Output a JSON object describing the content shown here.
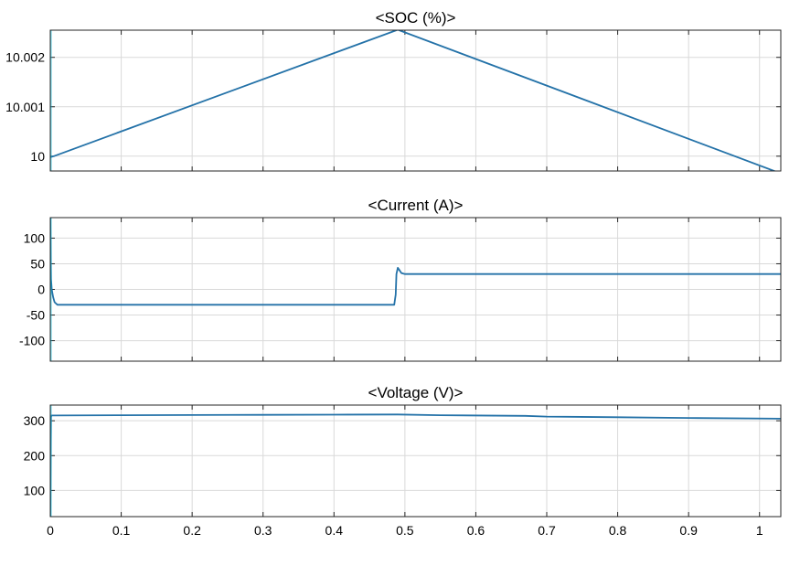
{
  "chart_data": [
    {
      "type": "line",
      "title": "<SOC (%)>",
      "xlim": [
        0,
        1.03
      ],
      "ylim": [
        9.9997,
        10.00255
      ],
      "grid": true,
      "yticks": [
        10,
        10.001,
        10.002
      ],
      "yticklabels": [
        "10",
        "10.001",
        "10.002"
      ],
      "xticks": [
        0,
        0.1,
        0.2,
        0.3,
        0.4,
        0.5,
        0.6,
        0.7,
        0.8,
        0.9,
        1
      ],
      "xticklabels": [],
      "series": [
        {
          "x": [
            0,
            0.005,
            0.49,
            1.03
          ],
          "y": [
            9.99998,
            10.0,
            10.00256,
            9.99965
          ]
        }
      ]
    },
    {
      "type": "line",
      "title": "<Current (A)>",
      "xlim": [
        0,
        1.03
      ],
      "ylim": [
        -140,
        140
      ],
      "grid": true,
      "yticks": [
        -100,
        -50,
        0,
        50,
        100
      ],
      "yticklabels": [
        "-100",
        "-50",
        "0",
        "50",
        "100"
      ],
      "xticks": [
        0,
        0.1,
        0.2,
        0.3,
        0.4,
        0.5,
        0.6,
        0.7,
        0.8,
        0.9,
        1
      ],
      "xticklabels": [],
      "series": [
        {
          "x": [
            0,
            0.001,
            0.002,
            0.004,
            0.006,
            0.01,
            0.015,
            0.02,
            0.1,
            0.2,
            0.3,
            0.4,
            0.485,
            0.487,
            0.488,
            0.49,
            0.492,
            0.495,
            0.5,
            0.51,
            0.6,
            0.7,
            0.8,
            0.9,
            1.03
          ],
          "y": [
            140,
            20,
            0,
            -15,
            -25,
            -30,
            -30,
            -30,
            -30,
            -30,
            -30,
            -30,
            -30,
            -10,
            30,
            42,
            38,
            32,
            30,
            30,
            30,
            30,
            30,
            30,
            30
          ]
        }
      ]
    },
    {
      "type": "line",
      "title": "<Voltage (V)>",
      "xlim": [
        0,
        1.03
      ],
      "ylim": [
        25,
        345
      ],
      "grid": true,
      "yticks": [
        100,
        200,
        300
      ],
      "yticklabels": [
        "100",
        "200",
        "300"
      ],
      "xticks": [
        0,
        0.1,
        0.2,
        0.3,
        0.4,
        0.5,
        0.6,
        0.7,
        0.8,
        0.9,
        1
      ],
      "xticklabels": [
        "0",
        "0.1",
        "0.2",
        "0.3",
        "0.4",
        "0.5",
        "0.6",
        "0.7",
        "0.8",
        "0.9",
        "1"
      ],
      "series": [
        {
          "x": [
            0,
            0.001,
            0.002,
            0.005,
            0.1,
            0.2,
            0.3,
            0.4,
            0.49,
            0.55,
            0.67,
            0.7,
            0.8,
            0.9,
            1.03
          ],
          "y": [
            25,
            312,
            315,
            315,
            316,
            316.5,
            317,
            317.5,
            318,
            316,
            314,
            312,
            310,
            308,
            306
          ]
        }
      ]
    }
  ],
  "style": {
    "line_color": "#2472a8",
    "cursor_color": "#00b8d9"
  }
}
